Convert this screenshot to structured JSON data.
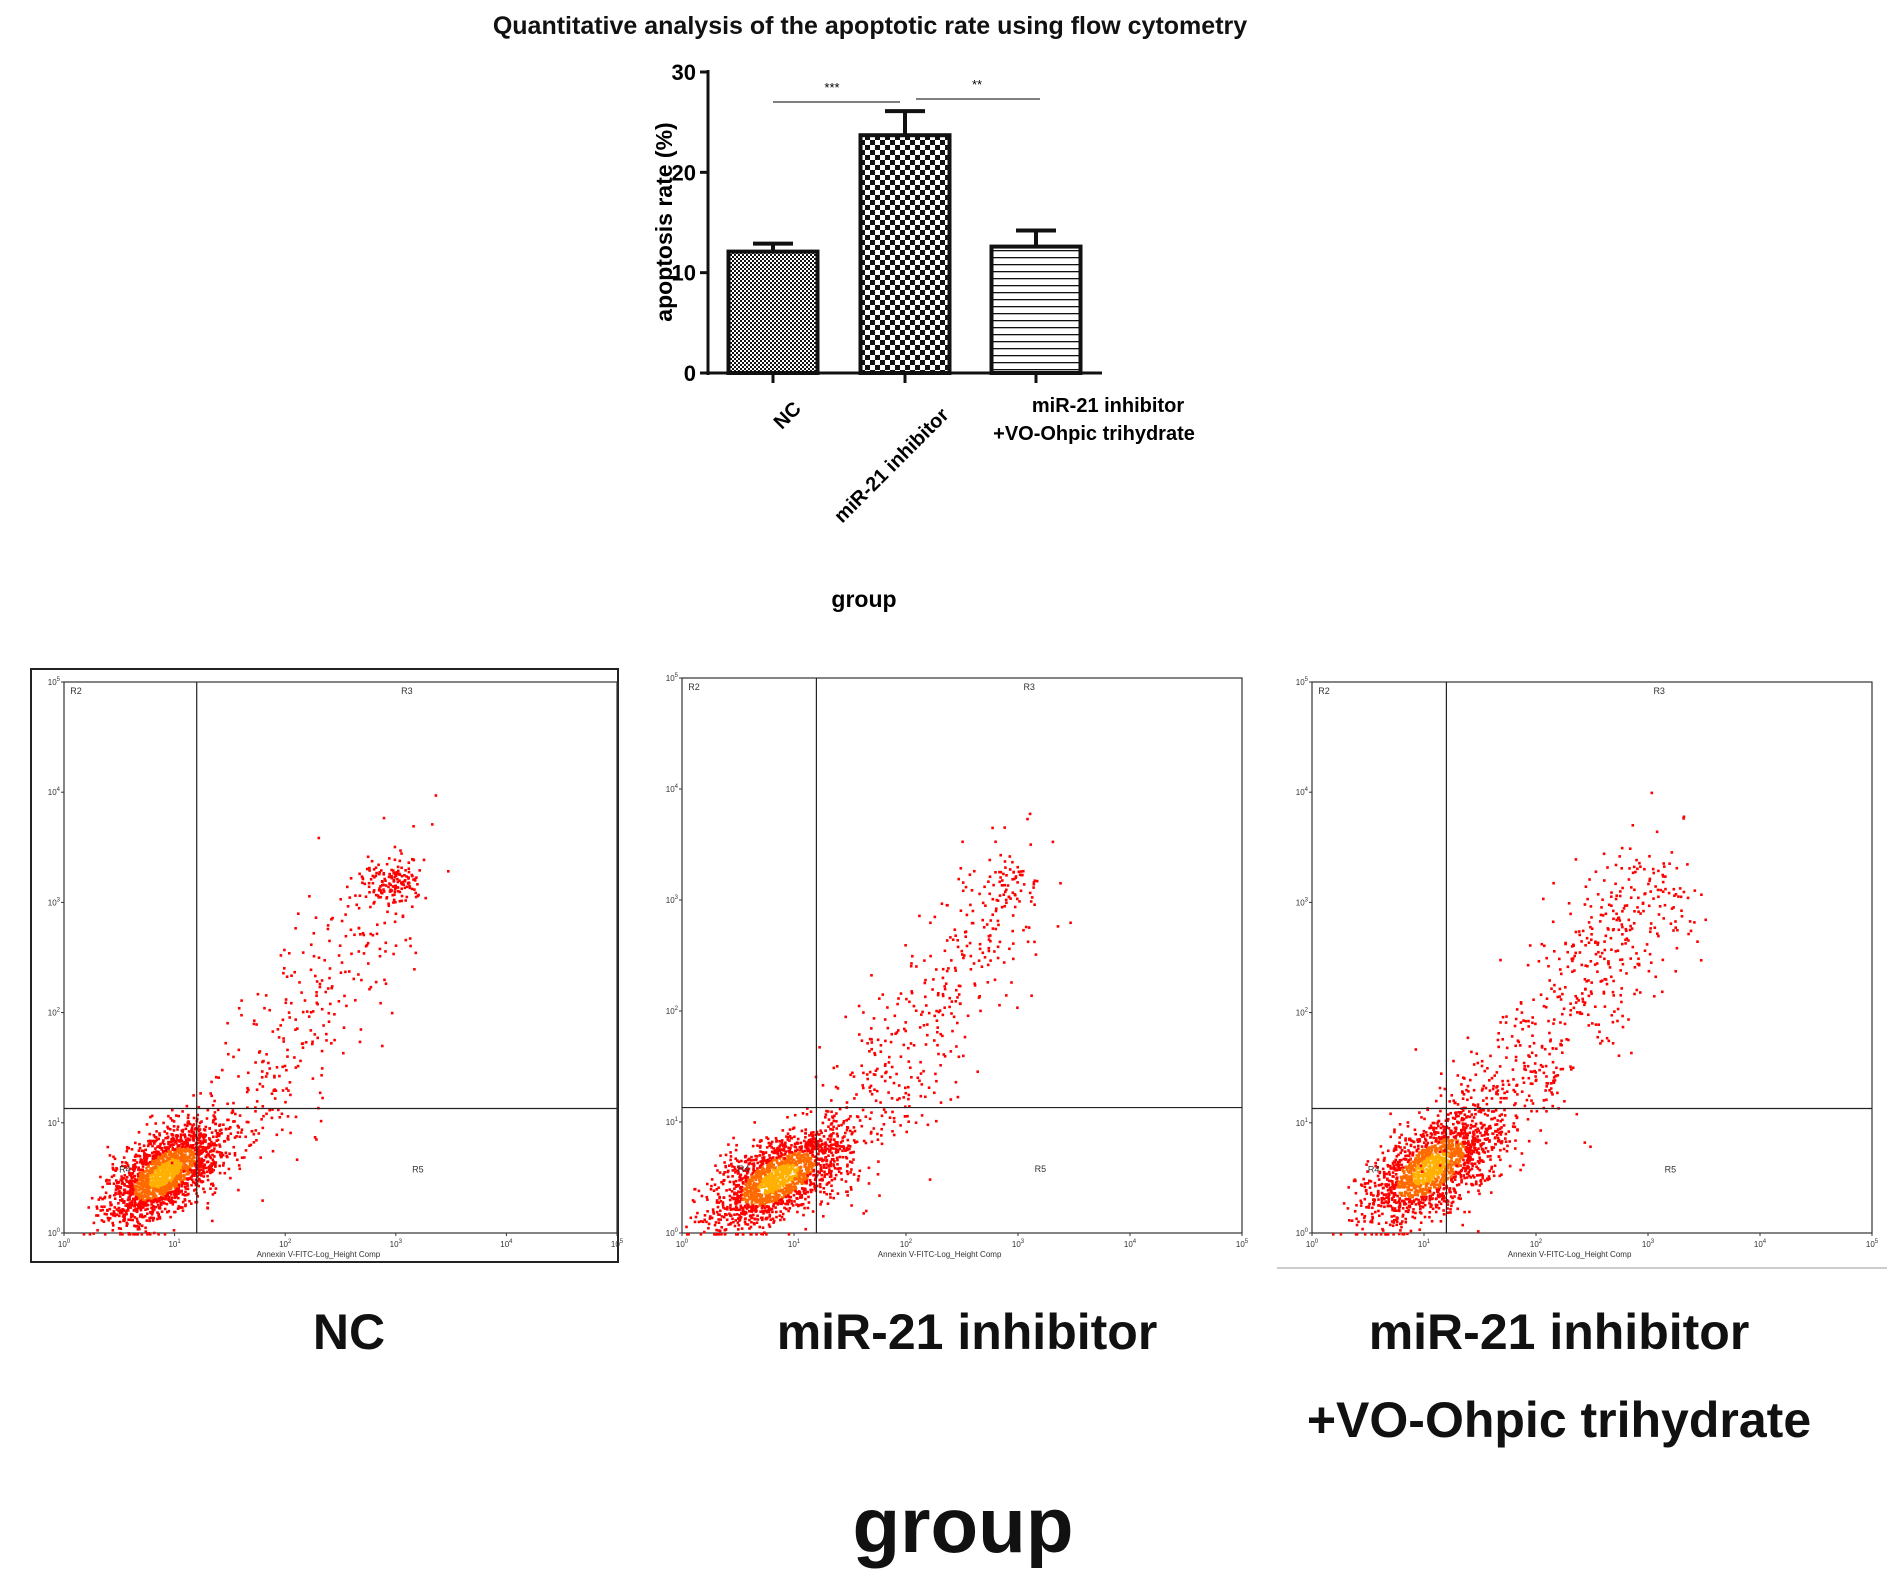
{
  "chart_data": [
    {
      "type": "bar",
      "title": "Quantitative analysis of the apoptotic rate using flow cytometry",
      "xlabel": "group",
      "ylabel": "apoptosis rate (%)",
      "ylim": [
        0,
        30
      ],
      "yticks": [
        "0",
        "10",
        "20",
        "30"
      ],
      "categories": [
        "NC",
        "miR-21 inhibitor",
        "miR-21 inhibitor\n+VO-Ohpic trihydrate"
      ],
      "category_lines": [
        [
          "NC"
        ],
        [
          "miR-21 inhibitor"
        ],
        [
          "miR-21 inhibitor",
          "+VO-Ohpic trihydrate"
        ]
      ],
      "values": [
        12.1,
        23.7,
        12.6
      ],
      "errors": [
        0.8,
        2.4,
        1.6
      ],
      "fill_patterns": [
        "fine-checker",
        "coarse-checker",
        "horizontal-lines"
      ],
      "significance": [
        {
          "from": 0,
          "to": 1,
          "label": "***"
        },
        {
          "from": 1,
          "to": 2,
          "label": "**"
        }
      ],
      "grid": false,
      "legend": "none"
    },
    {
      "type": "scatter",
      "panels": [
        {
          "label": "NC",
          "label_lines": [
            "NC"
          ]
        },
        {
          "label": "miR-21 inhibitor",
          "label_lines": [
            "miR-21 inhibitor"
          ]
        },
        {
          "label": "miR-21 inhibitor +VO-Ohpic trihydrate",
          "label_lines": [
            "miR-21 inhibitor",
            "+VO-Ohpic trihydrate"
          ]
        }
      ],
      "xlabel": "Annexin V-FITC-Log_Height Comp",
      "xscale": "log",
      "yscale": "log",
      "xlim": [
        1,
        100000
      ],
      "ylim": [
        1,
        100000
      ],
      "tick_exponents": [
        "0",
        "1",
        "2",
        "3",
        "4",
        "5"
      ],
      "regions": [
        "R2",
        "R3",
        "R4",
        "R5"
      ],
      "point_color": "#ff0000",
      "dense_color": "#ffb000",
      "group_label": "group"
    }
  ]
}
